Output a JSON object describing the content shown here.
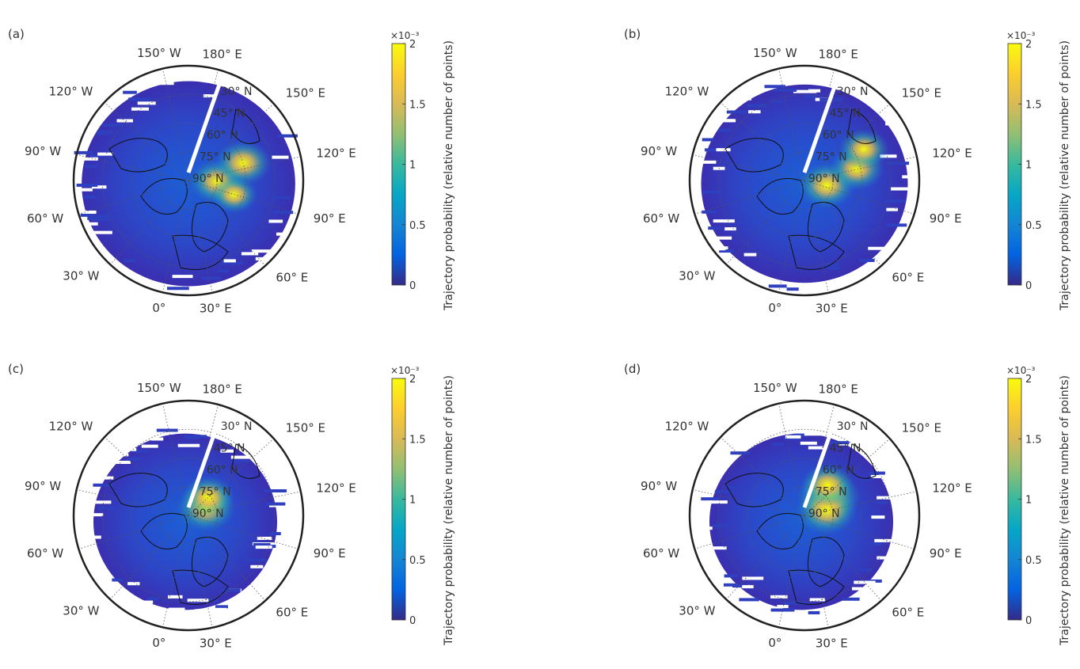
{
  "figure": {
    "panels": [
      {
        "id": "a",
        "label": "(a)",
        "lon_labels": [
          "150° W",
          "180° E",
          "150° E",
          "120° E",
          "90° E",
          "60° E",
          "30° E",
          "0°",
          "30° W",
          "60° W",
          "90° W",
          "120° W"
        ],
        "lat_labels": [
          "30° N",
          "45° N",
          "60° N",
          "75° N",
          "90° N"
        ],
        "hotspots": [
          {
            "lon": 60,
            "lat": 75,
            "value": 0.0016
          },
          {
            "lon": 40,
            "lat": 60,
            "value": 0.0017
          },
          {
            "lon": 75,
            "lat": 65,
            "value": 0.0012
          }
        ]
      },
      {
        "id": "b",
        "label": "(b)",
        "lon_labels": [
          "150° W",
          "180° E",
          "150° E",
          "120° E",
          "90° E",
          "60° E",
          "30° E",
          "0°",
          "30° W",
          "60° W",
          "90° W",
          "120° W"
        ],
        "lat_labels": [
          "30° N",
          "45° N",
          "60° N",
          "75° N",
          "90° N"
        ],
        "hotspots": [
          {
            "lon": 70,
            "lat": 78,
            "value": 0.0017
          },
          {
            "lon": 45,
            "lat": 62,
            "value": 0.0016
          },
          {
            "lon": 30,
            "lat": 55,
            "value": 0.0014
          }
        ]
      },
      {
        "id": "c",
        "label": "(c)",
        "lon_labels": [
          "150° W",
          "180° E",
          "150° E",
          "120° E",
          "90° E",
          "60° E",
          "30° E",
          "0°",
          "30° W",
          "60° W",
          "90° W",
          "120° W"
        ],
        "lat_labels": [
          "30° N",
          "45° N",
          "60° N",
          "75° N",
          "90° N"
        ],
        "hotspots": [
          {
            "lon": 35,
            "lat": 80,
            "value": 0.0018
          },
          {
            "lon": 15,
            "lat": 76,
            "value": 0.0015
          }
        ]
      },
      {
        "id": "d",
        "label": "(d)",
        "lon_labels": [
          "150° W",
          "180° E",
          "150° E",
          "120° E",
          "90° E",
          "60° E",
          "30° E",
          "0°",
          "30° W",
          "60° W",
          "90° W",
          "120° W"
        ],
        "lat_labels": [
          "30° N",
          "45° N",
          "60° N",
          "75° N",
          "90° N"
        ],
        "hotspots": [
          {
            "lon": 20,
            "lat": 74,
            "value": 0.002
          },
          {
            "lon": 45,
            "lat": 78,
            "value": 0.0019
          },
          {
            "lon": 5,
            "lat": 70,
            "value": 0.0015
          }
        ]
      }
    ],
    "colorbar": {
      "label": "Trajectory probability (relative number of points)",
      "exponent": "×10⁻³",
      "ticks": [
        "0",
        "0.5",
        "1",
        "1.5",
        "2"
      ],
      "range": [
        0,
        0.002
      ],
      "colormap": "parula",
      "colors": [
        "#352a87",
        "#0363e1",
        "#1485d4",
        "#06a7c6",
        "#38b99e",
        "#92bf73",
        "#d9ba56",
        "#fcce2e",
        "#f9fb0e"
      ]
    }
  }
}
